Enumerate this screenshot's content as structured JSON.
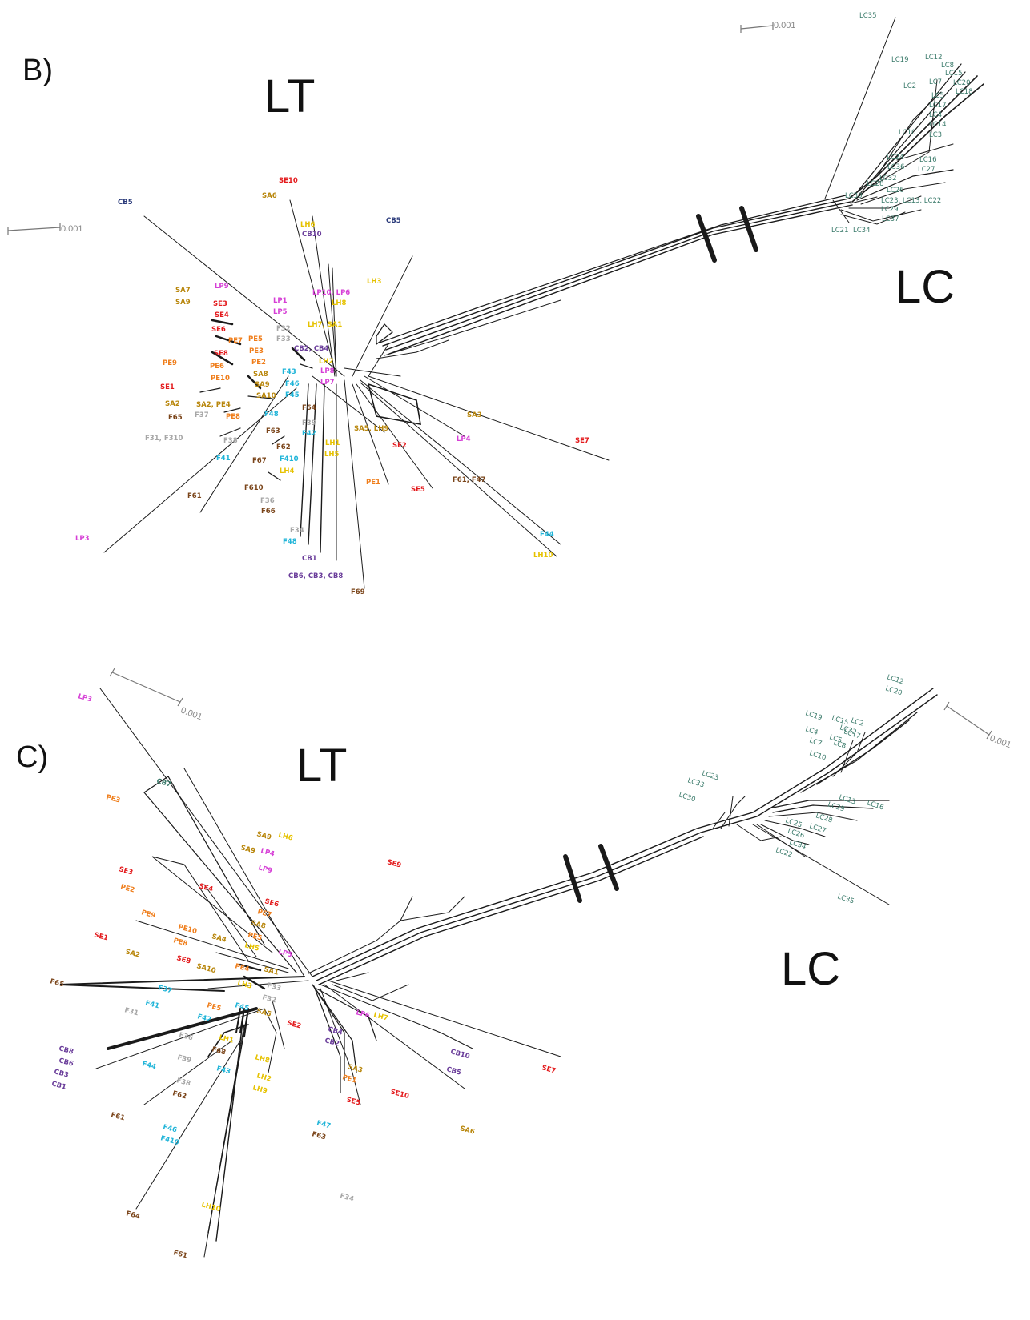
{
  "colors": {
    "SE": "#e31a1c",
    "PE": "#ef7d1a",
    "SA": "#b8860b",
    "LH": "#e6c200",
    "LP": "#d63fd6",
    "CB": "#6a3d9a",
    "F4": "#1fb4d8",
    "F6": "#7a4419",
    "F3": "#a6a6a6",
    "LC": "#3a7a6a",
    "CBnavy": "#2a3a7a"
  },
  "panels": [
    {
      "id": "B",
      "panel_label": "B)",
      "group_left": "LT",
      "group_right": "LC",
      "scale_left": "0.001",
      "scale_right": "0.001",
      "lt_labels": [
        {
          "t": "SE10",
          "c": "SE"
        },
        {
          "t": "SA6",
          "c": "SA"
        },
        {
          "t": "LH6",
          "c": "LH"
        },
        {
          "t": "CB10",
          "c": "CB"
        },
        {
          "t": "CB5",
          "c": "CBnavy"
        },
        {
          "t": "CB5",
          "c": "CBnavy"
        },
        {
          "t": "LH3",
          "c": "LH"
        },
        {
          "t": "LP10, LP6",
          "c": "LP"
        },
        {
          "t": "LH8",
          "c": "LH"
        },
        {
          "t": "LP1",
          "c": "LP"
        },
        {
          "t": "LP5",
          "c": "LP"
        },
        {
          "t": "LP9",
          "c": "LP"
        },
        {
          "t": "SA7",
          "c": "SA"
        },
        {
          "t": "SA9",
          "c": "SA"
        },
        {
          "t": "SE3",
          "c": "SE"
        },
        {
          "t": "SE4",
          "c": "SE"
        },
        {
          "t": "SE6",
          "c": "SE"
        },
        {
          "t": "F32",
          "c": "F3"
        },
        {
          "t": "F33",
          "c": "F3"
        },
        {
          "t": "LH7, SA1",
          "c": "LH"
        },
        {
          "t": "PE7",
          "c": "PE"
        },
        {
          "t": "PE5",
          "c": "PE"
        },
        {
          "t": "PE3",
          "c": "PE"
        },
        {
          "t": "SE8",
          "c": "SE"
        },
        {
          "t": "PE2",
          "c": "PE"
        },
        {
          "t": "CB2, CB4",
          "c": "CB"
        },
        {
          "t": "LH2",
          "c": "LH"
        },
        {
          "t": "PE9",
          "c": "PE"
        },
        {
          "t": "PE6",
          "c": "PE"
        },
        {
          "t": "SA8",
          "c": "SA"
        },
        {
          "t": "F43",
          "c": "F4"
        },
        {
          "t": "LP8",
          "c": "LP"
        },
        {
          "t": "PE10",
          "c": "PE"
        },
        {
          "t": "SA9",
          "c": "SA"
        },
        {
          "t": "F46",
          "c": "F4"
        },
        {
          "t": "LP7",
          "c": "LP"
        },
        {
          "t": "SE1",
          "c": "SE"
        },
        {
          "t": "SA10",
          "c": "SA"
        },
        {
          "t": "F45",
          "c": "F4"
        },
        {
          "t": "SA2",
          "c": "SA"
        },
        {
          "t": "SA2, PE4",
          "c": "SA"
        },
        {
          "t": "F64",
          "c": "F6"
        },
        {
          "t": "F65",
          "c": "F6"
        },
        {
          "t": "F37",
          "c": "F3"
        },
        {
          "t": "PE8",
          "c": "PE"
        },
        {
          "t": "F48",
          "c": "F4"
        },
        {
          "t": "F39",
          "c": "F3"
        },
        {
          "t": "SA3",
          "c": "SA"
        },
        {
          "t": "F63",
          "c": "F6"
        },
        {
          "t": "F42",
          "c": "F4"
        },
        {
          "t": "SA5, LH9",
          "c": "SA"
        },
        {
          "t": "F31, F310",
          "c": "F3"
        },
        {
          "t": "F38",
          "c": "F3"
        },
        {
          "t": "LP4",
          "c": "LP"
        },
        {
          "t": "F62",
          "c": "F6"
        },
        {
          "t": "LH1",
          "c": "LH"
        },
        {
          "t": "SE2",
          "c": "SE"
        },
        {
          "t": "SE7",
          "c": "SE"
        },
        {
          "t": "F41",
          "c": "F4"
        },
        {
          "t": "F67",
          "c": "F6"
        },
        {
          "t": "F410",
          "c": "F4"
        },
        {
          "t": "LH5",
          "c": "LH"
        },
        {
          "t": "LH4",
          "c": "LH"
        },
        {
          "t": "F61, F47",
          "c": "F6"
        },
        {
          "t": "PE1",
          "c": "PE"
        },
        {
          "t": "SE5",
          "c": "SE"
        },
        {
          "t": "F61",
          "c": "F6"
        },
        {
          "t": "F610",
          "c": "F6"
        },
        {
          "t": "F36",
          "c": "F3"
        },
        {
          "t": "F66",
          "c": "F6"
        },
        {
          "t": "F44",
          "c": "F4"
        },
        {
          "t": "F34",
          "c": "F3"
        },
        {
          "t": "LH10",
          "c": "LH"
        },
        {
          "t": "F48",
          "c": "F4"
        },
        {
          "t": "LP3",
          "c": "LP"
        },
        {
          "t": "CB1",
          "c": "CB"
        },
        {
          "t": "CB6, CB3, CB8",
          "c": "CB"
        },
        {
          "t": "F69",
          "c": "F6"
        }
      ],
      "lc_labels": [
        "LC35",
        "LC19",
        "LC12",
        "LC8",
        "LC15",
        "LC20",
        "LC18",
        "LC2",
        "LC7",
        "LC5",
        "LC17",
        "LC4",
        "LC14",
        "LC10",
        "LC3",
        "LC24",
        "LC16",
        "LC36",
        "LC27",
        "LC32",
        "LC28",
        "LC26",
        "LC30",
        "LC23, LC13, LC22",
        "LC29",
        "LC37",
        "LC21",
        "LC34"
      ]
    },
    {
      "id": "C",
      "panel_label": "C)",
      "group_left": "LT",
      "group_right": "LC",
      "scale_left": "0.001",
      "scale_right": "0.001",
      "lt_labels": [
        {
          "t": "LP3",
          "c": "LP"
        },
        {
          "t": "CB7",
          "c": "LC"
        },
        {
          "t": "PE3",
          "c": "PE"
        },
        {
          "t": "SA9",
          "c": "SA"
        },
        {
          "t": "LH6",
          "c": "LH"
        },
        {
          "t": "SA9",
          "c": "SA"
        },
        {
          "t": "LP4",
          "c": "LP"
        },
        {
          "t": "LP9",
          "c": "LP"
        },
        {
          "t": "SE3",
          "c": "SE"
        },
        {
          "t": "PE2",
          "c": "PE"
        },
        {
          "t": "SE9",
          "c": "SE"
        },
        {
          "t": "SE4",
          "c": "SE"
        },
        {
          "t": "SE6",
          "c": "SE"
        },
        {
          "t": "PE7",
          "c": "PE"
        },
        {
          "t": "SA8",
          "c": "SA"
        },
        {
          "t": "PE9",
          "c": "PE"
        },
        {
          "t": "PE10",
          "c": "PE"
        },
        {
          "t": "SA4",
          "c": "SA"
        },
        {
          "t": "PE5",
          "c": "PE"
        },
        {
          "t": "PE8",
          "c": "PE"
        },
        {
          "t": "LH5",
          "c": "LH"
        },
        {
          "t": "SE1",
          "c": "SE"
        },
        {
          "t": "LP5",
          "c": "LP"
        },
        {
          "t": "SA2",
          "c": "SA"
        },
        {
          "t": "SE8",
          "c": "SE"
        },
        {
          "t": "SA10",
          "c": "SA"
        },
        {
          "t": "PE4",
          "c": "PE"
        },
        {
          "t": "SA1",
          "c": "SA"
        },
        {
          "t": "F65",
          "c": "F6"
        },
        {
          "t": "F37",
          "c": "F4"
        },
        {
          "t": "LH3",
          "c": "LH"
        },
        {
          "t": "F33",
          "c": "F3"
        },
        {
          "t": "F32",
          "c": "F3"
        },
        {
          "t": "F41",
          "c": "F4"
        },
        {
          "t": "PE5",
          "c": "PE"
        },
        {
          "t": "F45",
          "c": "F4"
        },
        {
          "t": "SA5",
          "c": "SA"
        },
        {
          "t": "F31",
          "c": "F3"
        },
        {
          "t": "F42",
          "c": "F4"
        },
        {
          "t": "SE2",
          "c": "SE"
        },
        {
          "t": "LP6",
          "c": "LP"
        },
        {
          "t": "LH7",
          "c": "LH"
        },
        {
          "t": "CB4",
          "c": "CB"
        },
        {
          "t": "CB8",
          "c": "CB"
        },
        {
          "t": "F36",
          "c": "F3"
        },
        {
          "t": "LH1",
          "c": "LH"
        },
        {
          "t": "CB2",
          "c": "CB"
        },
        {
          "t": "CB10",
          "c": "CB"
        },
        {
          "t": "CB6",
          "c": "CB"
        },
        {
          "t": "F68",
          "c": "F6"
        },
        {
          "t": "F44",
          "c": "F4"
        },
        {
          "t": "F39",
          "c": "F3"
        },
        {
          "t": "LH8",
          "c": "LH"
        },
        {
          "t": "CB3",
          "c": "CB"
        },
        {
          "t": "F43",
          "c": "F4"
        },
        {
          "t": "SA3",
          "c": "SA"
        },
        {
          "t": "CB5",
          "c": "CB"
        },
        {
          "t": "SE7",
          "c": "SE"
        },
        {
          "t": "CB1",
          "c": "CB"
        },
        {
          "t": "LH2",
          "c": "LH"
        },
        {
          "t": "PE1",
          "c": "PE"
        },
        {
          "t": "F38",
          "c": "F3"
        },
        {
          "t": "LH9",
          "c": "LH"
        },
        {
          "t": "SE10",
          "c": "SE"
        },
        {
          "t": "F62",
          "c": "F6"
        },
        {
          "t": "SE5",
          "c": "SE"
        },
        {
          "t": "F61",
          "c": "F6"
        },
        {
          "t": "F47",
          "c": "F4"
        },
        {
          "t": "SA6",
          "c": "SA"
        },
        {
          "t": "F46",
          "c": "F4"
        },
        {
          "t": "F63",
          "c": "F6"
        },
        {
          "t": "F410",
          "c": "F4"
        },
        {
          "t": "F34",
          "c": "F3"
        },
        {
          "t": "LH10",
          "c": "LH"
        },
        {
          "t": "F64",
          "c": "F6"
        },
        {
          "t": "F61",
          "c": "F6"
        }
      ],
      "lc_labels": [
        "LC12",
        "LC20",
        "LC19",
        "LC15",
        "LC2",
        "LC17",
        "LC8",
        "LC10",
        "LC23",
        "LC33",
        "LC30",
        "LC13",
        "LC16",
        "LC29",
        "LC28",
        "LC25",
        "LC27",
        "LC26",
        "LC34",
        "LC22",
        "LC35",
        "LC4",
        "LC7",
        "LC5",
        "LC32"
      ]
    }
  ]
}
